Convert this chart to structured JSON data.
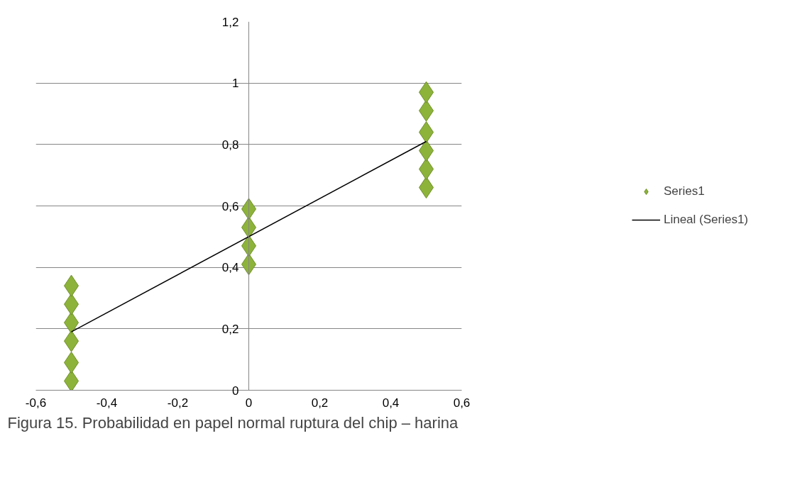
{
  "chart_data": {
    "type": "scatter",
    "annotations": [
      "Figura 15. Probabilidad en papel normal ruptura del chip – harina"
    ],
    "series": [
      {
        "name": "Series1",
        "type": "scatter",
        "color": "#8db33a",
        "marker": "diamond",
        "x": [
          -0.5,
          -0.5,
          -0.5,
          -0.5,
          -0.5,
          -0.5,
          0,
          0,
          0,
          0,
          0.5,
          0.5,
          0.5,
          0.5,
          0.5,
          0.5
        ],
        "values": [
          0.03,
          0.09,
          0.16,
          0.22,
          0.28,
          0.34,
          0.41,
          0.47,
          0.53,
          0.59,
          0.66,
          0.72,
          0.78,
          0.84,
          0.91,
          0.97
        ]
      },
      {
        "name": "Lineal (Series1)",
        "type": "line",
        "color": "#000000",
        "line_style": "solid",
        "x": [
          -0.5,
          0.5
        ],
        "values": [
          0.19,
          0.81
        ]
      }
    ],
    "xlim": [
      -0.6,
      0.6
    ],
    "xticks": [
      {
        "value": -0.6,
        "label": "-0,6"
      },
      {
        "value": -0.4,
        "label": "-0,4"
      },
      {
        "value": -0.2,
        "label": "-0,2"
      },
      {
        "value": 0,
        "label": "0"
      },
      {
        "value": 0.2,
        "label": "0,2"
      },
      {
        "value": 0.4,
        "label": "0,4"
      },
      {
        "value": 0.6,
        "label": "0,6"
      }
    ],
    "ylim": [
      0,
      1.2
    ],
    "yticks": [
      {
        "value": 0,
        "label": "0"
      },
      {
        "value": 0.2,
        "label": "0,2"
      },
      {
        "value": 0.4,
        "label": "0,4"
      },
      {
        "value": 0.6,
        "label": "0,6"
      },
      {
        "value": 0.8,
        "label": "0,8"
      },
      {
        "value": 1,
        "label": "1"
      },
      {
        "value": 1.2,
        "label": "1,2"
      }
    ],
    "grid": "y",
    "legend": "right"
  }
}
